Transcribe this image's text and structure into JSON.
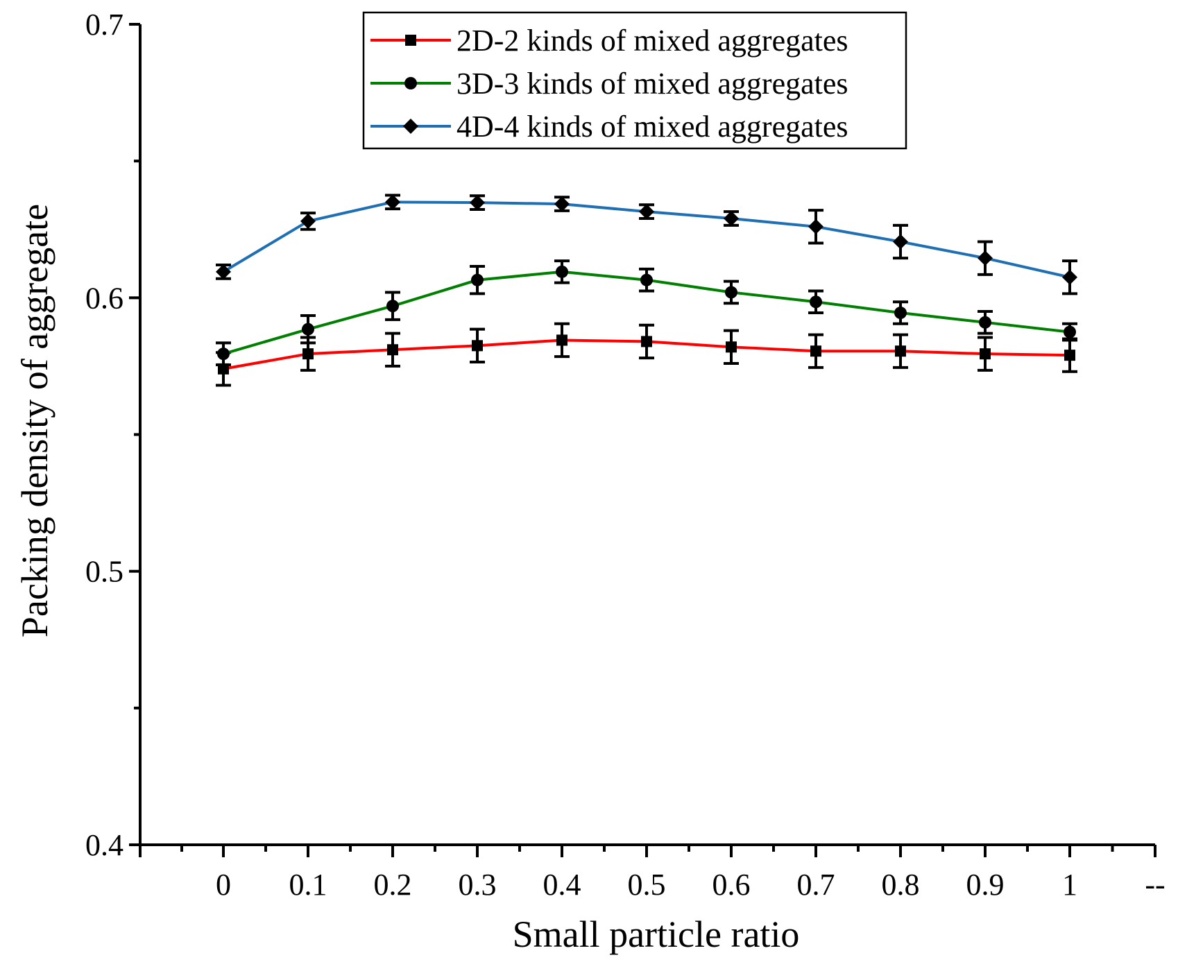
{
  "chart_data": {
    "type": "line",
    "title": "",
    "xlabel": "Small particle ratio",
    "ylabel": "Packing density of aggregate",
    "xlim": [
      -0.1,
      1.1
    ],
    "ylim": [
      0.4,
      0.7
    ],
    "x_ticks": [
      0,
      0.1,
      0.2,
      0.3,
      0.4,
      0.5,
      0.6,
      0.7,
      0.8,
      0.9,
      1
    ],
    "x_tick_labels": [
      "0",
      "0.1",
      "0.2",
      "0.3",
      "0.4",
      "0.5",
      "0.6",
      "0.7",
      "0.8",
      "0.9",
      "1"
    ],
    "x_end_label": "--",
    "y_ticks": [
      0.4,
      0.5,
      0.6,
      0.7
    ],
    "y_tick_labels": [
      "0.4",
      "0.5",
      "0.6",
      "0.7"
    ],
    "grid": false,
    "legend_position": "top-center",
    "series": [
      {
        "name": "2D-2 kinds of mixed aggregates",
        "color": "#ff0000",
        "marker": "square",
        "x": [
          0,
          0.1,
          0.2,
          0.3,
          0.4,
          0.5,
          0.6,
          0.7,
          0.8,
          0.9,
          1
        ],
        "values": [
          0.574,
          0.5795,
          0.581,
          0.5825,
          0.5845,
          0.584,
          0.582,
          0.5805,
          0.5805,
          0.5795,
          0.579
        ],
        "errors": [
          0.006,
          0.006,
          0.006,
          0.006,
          0.006,
          0.006,
          0.006,
          0.006,
          0.006,
          0.006,
          0.006
        ]
      },
      {
        "name": "3D-3 kinds of mixed aggregates",
        "color": "#008000",
        "marker": "circle",
        "x": [
          0,
          0.1,
          0.2,
          0.3,
          0.4,
          0.5,
          0.6,
          0.7,
          0.8,
          0.9,
          1
        ],
        "values": [
          0.5795,
          0.5885,
          0.597,
          0.6065,
          0.6095,
          0.6065,
          0.602,
          0.5985,
          0.5945,
          0.591,
          0.5875
        ],
        "errors": [
          0.004,
          0.005,
          0.005,
          0.005,
          0.004,
          0.004,
          0.004,
          0.004,
          0.004,
          0.004,
          0.003
        ]
      },
      {
        "name": "4D-4 kinds of mixed aggregates",
        "color": "#1f6fb4",
        "marker": "diamond",
        "x": [
          0,
          0.1,
          0.2,
          0.3,
          0.4,
          0.5,
          0.6,
          0.7,
          0.8,
          0.9,
          1
        ],
        "values": [
          0.6095,
          0.628,
          0.635,
          0.6348,
          0.6343,
          0.6315,
          0.629,
          0.626,
          0.6205,
          0.6145,
          0.6075
        ],
        "errors": [
          0.0025,
          0.003,
          0.0025,
          0.0025,
          0.0025,
          0.0025,
          0.0025,
          0.006,
          0.006,
          0.006,
          0.006
        ]
      }
    ]
  }
}
